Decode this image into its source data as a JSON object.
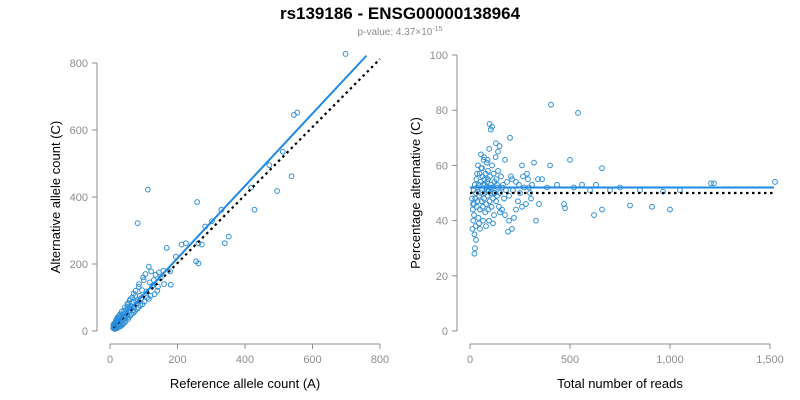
{
  "figure": {
    "title": "rs139186 - ENSG00000138964",
    "subtitle_prefix": "p-value: 4.37×10",
    "subtitle_exponent": "-15"
  },
  "colors": {
    "points": "#2f8fd6",
    "fit_line": "#1e88e5",
    "ref_line": "#000000",
    "axis": "#8c8c8c"
  },
  "chart_data": [
    {
      "type": "scatter",
      "xlabel": "Reference allele count (A)",
      "ylabel": "Alternative allele count (C)",
      "xlim": [
        0,
        800
      ],
      "ylim": [
        0,
        800
      ],
      "xticks": [
        0,
        200,
        400,
        600,
        800
      ],
      "yticks": [
        0,
        200,
        400,
        600,
        800
      ],
      "xtick_labels": [
        "0",
        "200",
        "400",
        "600",
        "800"
      ],
      "ytick_labels": [
        "0",
        "200",
        "400",
        "600",
        "800"
      ],
      "points": [
        [
          698,
          827
        ],
        [
          555,
          652
        ],
        [
          545,
          645
        ],
        [
          512,
          535
        ],
        [
          538,
          462
        ],
        [
          472,
          495
        ],
        [
          495,
          418
        ],
        [
          418,
          428
        ],
        [
          428,
          362
        ],
        [
          352,
          282
        ],
        [
          340,
          262
        ],
        [
          330,
          362
        ],
        [
          302,
          328
        ],
        [
          282,
          312
        ],
        [
          272,
          258
        ],
        [
          262,
          262
        ],
        [
          258,
          385
        ],
        [
          255,
          208
        ],
        [
          262,
          202
        ],
        [
          225,
          262
        ],
        [
          212,
          258
        ],
        [
          195,
          222
        ],
        [
          178,
          178
        ],
        [
          168,
          248
        ],
        [
          180,
          138
        ],
        [
          150,
          158
        ],
        [
          112,
          422
        ],
        [
          82,
          322
        ],
        [
          142,
          132
        ],
        [
          130,
          152
        ],
        [
          122,
          178
        ],
        [
          115,
          192
        ],
        [
          108,
          118
        ],
        [
          100,
          152
        ],
        [
          95,
          122
        ],
        [
          92,
          98
        ],
        [
          88,
          105
        ],
        [
          85,
          132
        ],
        [
          82,
          92
        ],
        [
          78,
          88
        ],
        [
          75,
          105
        ],
        [
          72,
          72
        ],
        [
          68,
          62
        ],
        [
          65,
          85
        ],
        [
          62,
          75
        ],
        [
          58,
          68
        ],
        [
          55,
          60
        ],
        [
          52,
          72
        ],
        [
          50,
          45
        ],
        [
          48,
          55
        ],
        [
          45,
          38
        ],
        [
          42,
          52
        ],
        [
          40,
          42
        ],
        [
          38,
          35
        ],
        [
          36,
          48
        ],
        [
          34,
          28
        ],
        [
          32,
          40
        ],
        [
          30,
          22
        ],
        [
          28,
          30
        ],
        [
          26,
          36
        ],
        [
          25,
          18
        ],
        [
          24,
          26
        ],
        [
          22,
          30
        ],
        [
          20,
          22
        ],
        [
          19,
          16
        ],
        [
          18,
          24
        ],
        [
          16,
          18
        ],
        [
          15,
          12
        ],
        [
          14,
          20
        ],
        [
          13,
          15
        ],
        [
          12,
          10
        ],
        [
          11,
          14
        ],
        [
          10,
          8
        ],
        [
          10,
          18
        ],
        [
          12,
          22
        ],
        [
          18,
          32
        ],
        [
          22,
          40
        ],
        [
          28,
          46
        ],
        [
          35,
          58
        ],
        [
          44,
          70
        ],
        [
          52,
          82
        ],
        [
          60,
          95
        ],
        [
          70,
          112
        ],
        [
          76,
          120
        ],
        [
          86,
          140
        ],
        [
          98,
          160
        ],
        [
          105,
          170
        ],
        [
          118,
          145
        ],
        [
          125,
          135
        ],
        [
          135,
          168
        ],
        [
          145,
          175
        ],
        [
          158,
          180
        ],
        [
          160,
          140
        ],
        [
          110,
          100
        ],
        [
          102,
          88
        ],
        [
          96,
          80
        ],
        [
          90,
          76
        ],
        [
          84,
          70
        ],
        [
          80,
          66
        ],
        [
          74,
          60
        ],
        [
          70,
          55
        ],
        [
          64,
          50
        ],
        [
          60,
          46
        ],
        [
          56,
          42
        ],
        [
          54,
          36
        ],
        [
          46,
          30
        ],
        [
          44,
          26
        ],
        [
          40,
          24
        ],
        [
          38,
          20
        ],
        [
          34,
          16
        ],
        [
          30,
          14
        ],
        [
          26,
          12
        ],
        [
          22,
          10
        ],
        [
          20,
          8
        ],
        [
          16,
          8
        ],
        [
          14,
          6
        ],
        [
          30,
          50
        ],
        [
          26,
          44
        ],
        [
          24,
          38
        ],
        [
          20,
          34
        ],
        [
          18,
          28
        ],
        [
          16,
          26
        ],
        [
          14,
          22
        ],
        [
          66,
          100
        ],
        [
          58,
          90
        ],
        [
          54,
          78
        ],
        [
          48,
          64
        ],
        [
          42,
          60
        ],
        [
          140,
          120
        ],
        [
          132,
          110
        ],
        [
          120,
          105
        ],
        [
          115,
          96
        ]
      ],
      "fit_line": [
        [
          10,
          12
        ],
        [
          760,
          822
        ]
      ],
      "ref_line": [
        [
          10,
          10
        ],
        [
          800,
          812
        ]
      ]
    },
    {
      "type": "scatter",
      "xlabel": "Total number of reads",
      "ylabel": "Percentage alternative (C)",
      "xlim": [
        0,
        1500
      ],
      "ylim": [
        0,
        100
      ],
      "xticks": [
        0,
        500,
        1000,
        1500
      ],
      "yticks": [
        0,
        20,
        40,
        60,
        80,
        100
      ],
      "xtick_labels": [
        "0",
        "500",
        "1,000",
        "1,500"
      ],
      "ytick_labels": [
        "0",
        "20",
        "40",
        "60",
        "80",
        "100"
      ],
      "points": [
        [
          1525,
          54
        ],
        [
          1220,
          53.5
        ],
        [
          1205,
          53.5
        ],
        [
          1050,
          51
        ],
        [
          1000,
          44
        ],
        [
          965,
          50.5
        ],
        [
          910,
          45
        ],
        [
          850,
          51
        ],
        [
          800,
          45.5
        ],
        [
          660,
          59
        ],
        [
          660,
          44
        ],
        [
          630,
          53
        ],
        [
          620,
          42
        ],
        [
          560,
          53
        ],
        [
          540,
          79
        ],
        [
          500,
          62
        ],
        [
          475,
          44.5
        ],
        [
          470,
          46
        ],
        [
          405,
          82
        ],
        [
          400,
          60
        ],
        [
          385,
          52
        ],
        [
          345,
          46
        ],
        [
          340,
          55
        ],
        [
          330,
          40
        ],
        [
          320,
          61
        ],
        [
          305,
          48
        ],
        [
          295,
          52
        ],
        [
          285,
          57
        ],
        [
          270,
          52
        ],
        [
          260,
          60
        ],
        [
          250,
          50
        ],
        [
          240,
          47
        ],
        [
          230,
          54
        ],
        [
          220,
          41
        ],
        [
          210,
          55
        ],
        [
          200,
          70
        ],
        [
          195,
          49
        ],
        [
          190,
          36
        ],
        [
          180,
          51
        ],
        [
          175,
          62
        ],
        [
          170,
          48
        ],
        [
          165,
          53
        ],
        [
          160,
          44
        ],
        [
          155,
          56
        ],
        [
          150,
          50
        ],
        [
          148,
          67
        ],
        [
          145,
          45
        ],
        [
          140,
          58
        ],
        [
          138,
          52
        ],
        [
          135,
          49
        ],
        [
          132,
          55
        ],
        [
          130,
          47
        ],
        [
          128,
          63
        ],
        [
          125,
          50
        ],
        [
          122,
          54
        ],
        [
          120,
          42
        ],
        [
          118,
          57
        ],
        [
          115,
          48
        ],
        [
          112,
          52
        ],
        [
          110,
          60
        ],
        [
          108,
          45
        ],
        [
          105,
          53
        ],
        [
          102,
          50
        ],
        [
          100,
          56
        ],
        [
          98,
          47
        ],
        [
          96,
          66
        ],
        [
          94,
          51
        ],
        [
          92,
          44
        ],
        [
          90,
          58
        ],
        [
          88,
          49
        ],
        [
          86,
          54
        ],
        [
          84,
          61
        ],
        [
          82,
          46
        ],
        [
          80,
          52
        ],
        [
          78,
          57
        ],
        [
          76,
          43
        ],
        [
          74,
          50
        ],
        [
          72,
          55
        ],
        [
          70,
          48
        ],
        [
          68,
          62
        ],
        [
          66,
          53
        ],
        [
          64,
          45
        ],
        [
          62,
          56
        ],
        [
          60,
          51
        ],
        [
          58,
          47
        ],
        [
          56,
          59
        ],
        [
          54,
          50
        ],
        [
          52,
          54
        ],
        [
          50,
          44
        ],
        [
          48,
          57
        ],
        [
          46,
          49
        ],
        [
          44,
          53
        ],
        [
          42,
          41
        ],
        [
          40,
          60
        ],
        [
          38,
          47
        ],
        [
          36,
          52
        ],
        [
          34,
          45
        ],
        [
          32,
          55
        ],
        [
          30,
          50
        ],
        [
          28,
          38
        ],
        [
          26,
          48
        ],
        [
          24,
          53
        ],
        [
          22,
          35
        ],
        [
          20,
          46
        ],
        [
          18,
          51
        ],
        [
          16,
          40
        ],
        [
          14,
          44
        ],
        [
          12,
          37
        ],
        [
          10,
          48
        ],
        [
          110,
          74
        ],
        [
          98,
          75
        ],
        [
          104,
          73
        ],
        [
          130,
          68
        ],
        [
          140,
          65
        ],
        [
          55,
          64
        ],
        [
          60,
          59
        ],
        [
          70,
          63
        ],
        [
          88,
          62
        ],
        [
          35,
          57
        ],
        [
          30,
          33
        ],
        [
          25,
          30
        ],
        [
          22,
          28
        ],
        [
          20,
          42
        ],
        [
          15,
          46
        ],
        [
          45,
          39
        ],
        [
          50,
          37
        ],
        [
          65,
          40
        ],
        [
          80,
          38
        ],
        [
          95,
          40
        ],
        [
          115,
          39
        ],
        [
          150,
          43
        ],
        [
          175,
          42
        ],
        [
          195,
          40
        ],
        [
          210,
          37
        ],
        [
          230,
          44
        ],
        [
          260,
          45
        ],
        [
          280,
          46
        ],
        [
          300,
          50
        ],
        [
          75,
          53
        ],
        [
          85,
          51
        ],
        [
          90,
          55
        ],
        [
          100,
          52
        ],
        [
          120,
          50
        ],
        [
          135,
          53
        ],
        [
          160,
          52
        ],
        [
          185,
          54
        ],
        [
          205,
          56
        ],
        [
          215,
          51
        ],
        [
          245,
          53
        ],
        [
          265,
          56
        ],
        [
          290,
          55
        ],
        [
          310,
          53
        ],
        [
          360,
          55
        ],
        [
          435,
          53
        ],
        [
          520,
          52
        ],
        [
          600,
          51
        ],
        [
          700,
          51
        ],
        [
          750,
          52
        ]
      ],
      "fit_line": [
        [
          0,
          52
        ],
        [
          1520,
          52
        ]
      ],
      "ref_line": [
        [
          0,
          50
        ],
        [
          1520,
          50
        ]
      ]
    }
  ]
}
